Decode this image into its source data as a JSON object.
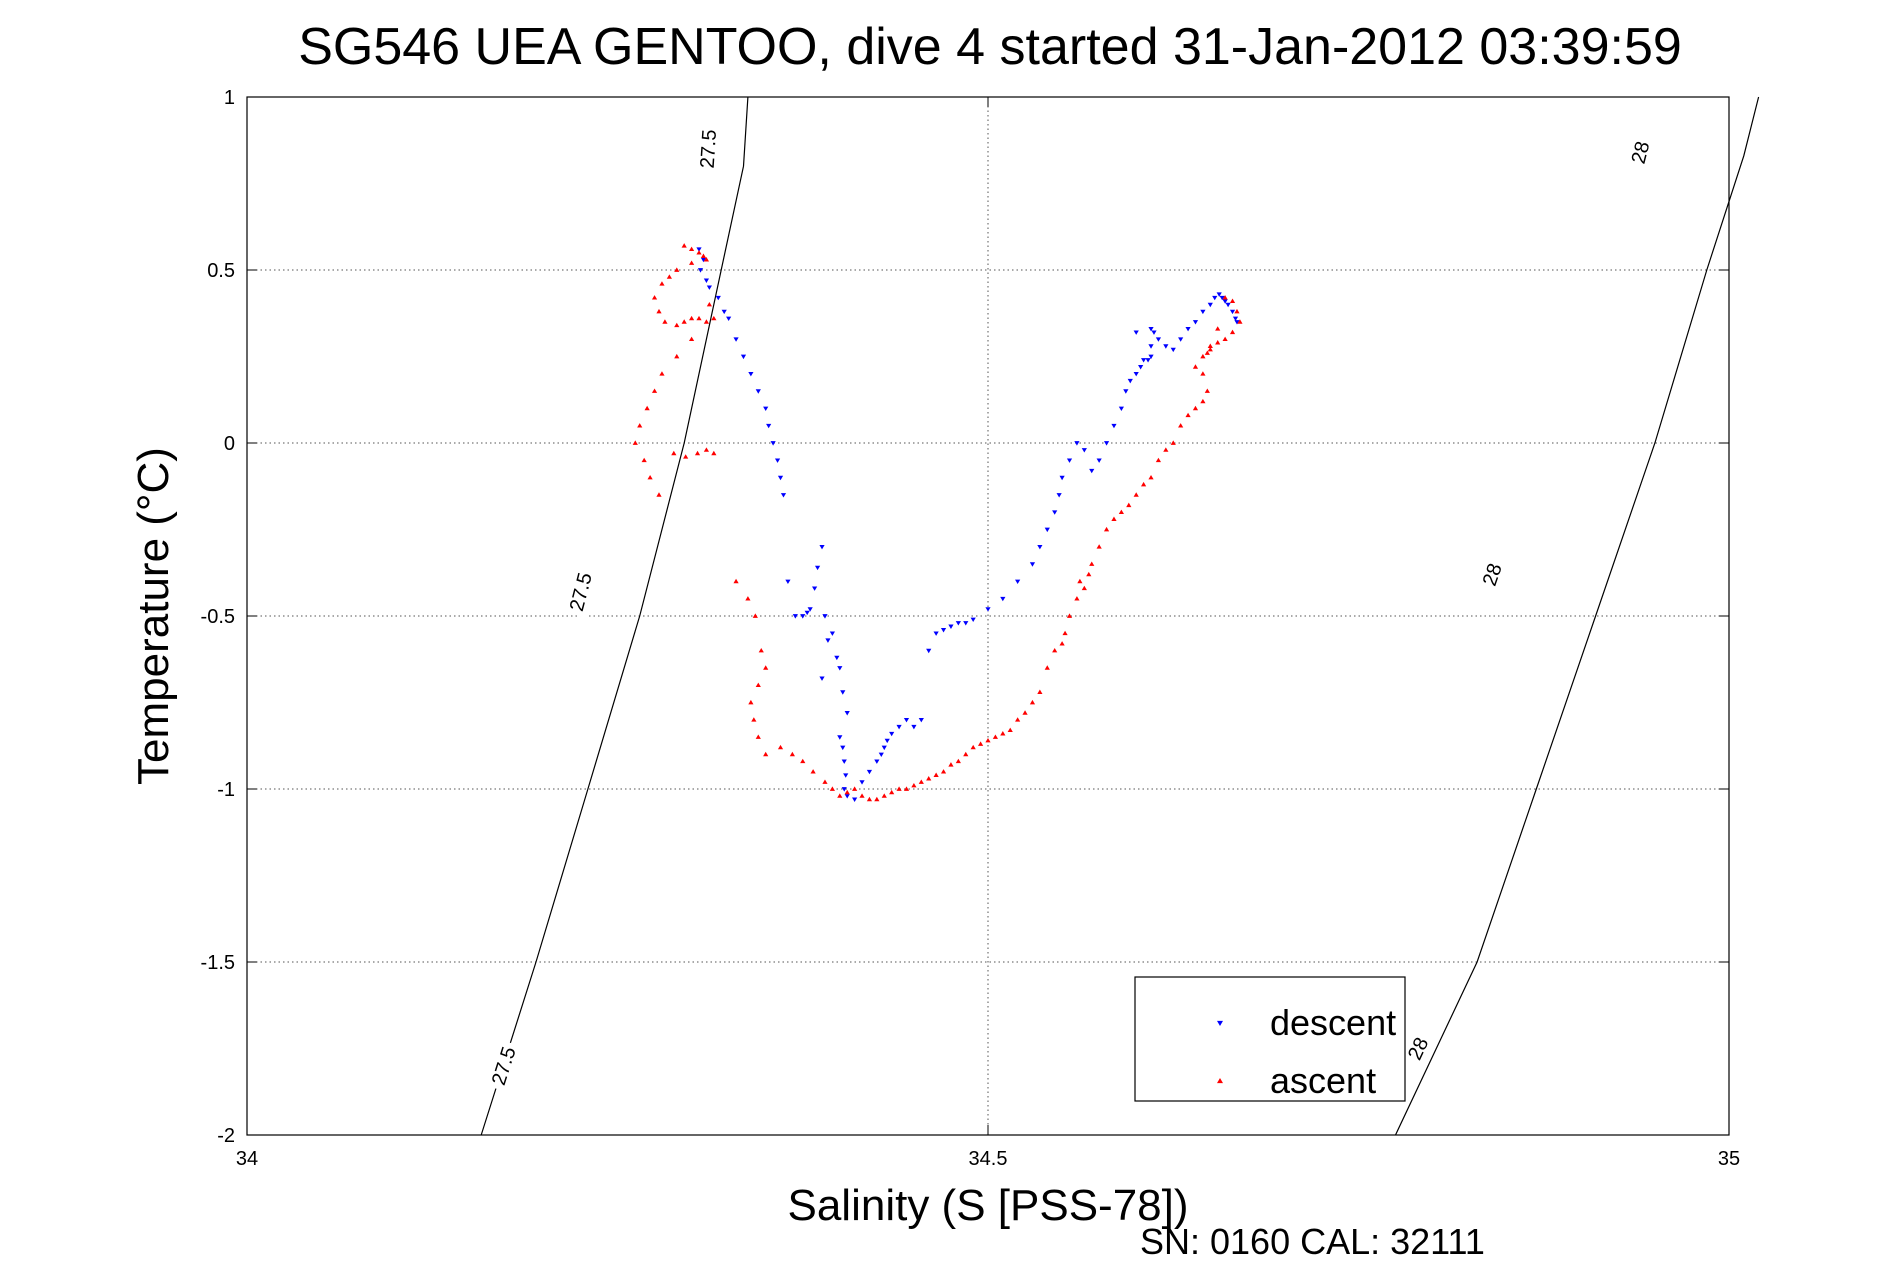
{
  "chart_data": {
    "type": "scatter",
    "title": "SG546 UEA GENTOO, dive 4 started 31-Jan-2012 03:39:59",
    "xlabel": "Salinity (S [PSS-78])",
    "ylabel": "Temperature (°C)",
    "xlim": [
      34,
      35
    ],
    "ylim": [
      -2,
      1
    ],
    "xticks": [
      34,
      34.5,
      35
    ],
    "yticks": [
      -2,
      -1.5,
      -1,
      -0.5,
      0,
      0.5,
      1
    ],
    "grid": true,
    "legend_position": "bottom-right",
    "footer": "SN: 0160  CAL: 32111",
    "contours": [
      {
        "value": "27.5",
        "points": [
          [
            34.158,
            -2
          ],
          [
            34.195,
            -1.5
          ],
          [
            34.23,
            -1
          ],
          [
            34.265,
            -0.5
          ],
          [
            34.295,
            0
          ],
          [
            34.32,
            0.5
          ],
          [
            34.335,
            0.8
          ],
          [
            34.338,
            1
          ]
        ],
        "labels": [
          [
            34.173,
            -1.8
          ],
          [
            34.225,
            -0.43
          ],
          [
            34.311,
            0.85
          ]
        ]
      },
      {
        "value": "28",
        "points": [
          [
            34.775,
            -2
          ],
          [
            34.83,
            -1.5
          ],
          [
            34.87,
            -1
          ],
          [
            34.91,
            -0.5
          ],
          [
            34.95,
            0
          ],
          [
            34.985,
            0.5
          ],
          [
            35.01,
            0.83
          ],
          [
            35.02,
            1
          ]
        ],
        "labels": [
          [
            34.79,
            -1.75
          ],
          [
            34.84,
            -0.38
          ],
          [
            34.94,
            0.84
          ]
        ]
      }
    ],
    "series": [
      {
        "name": "descent",
        "color": "#0000ff",
        "marker": "triangle-down",
        "x": [
          34.305,
          34.308,
          34.306,
          34.31,
          34.312,
          34.318,
          34.322,
          34.325,
          34.33,
          34.335,
          34.34,
          34.345,
          34.35,
          34.352,
          34.355,
          34.358,
          34.36,
          34.362,
          34.365,
          34.37,
          34.375,
          34.378,
          34.38,
          34.383,
          34.385,
          34.388,
          34.39,
          34.395,
          34.4,
          34.402,
          34.405,
          34.398,
          34.392,
          34.388,
          34.4,
          34.402,
          34.403,
          34.404,
          34.403,
          34.405,
          34.41,
          34.415,
          34.42,
          34.425,
          34.428,
          34.43,
          34.432,
          34.435,
          34.44,
          34.445,
          34.45,
          34.455,
          34.46,
          34.465,
          34.47,
          34.475,
          34.48,
          34.485,
          34.49,
          34.5,
          34.51,
          34.52,
          34.53,
          34.535,
          34.54,
          34.545,
          34.548,
          34.55,
          34.555,
          34.56,
          34.565,
          34.57,
          34.575,
          34.58,
          34.585,
          34.59,
          34.593,
          34.596,
          34.6,
          34.603,
          34.605,
          34.608,
          34.61,
          34.61,
          34.6,
          34.61,
          34.612,
          34.615,
          34.62,
          34.625,
          34.63,
          34.635,
          34.64,
          34.645,
          34.65,
          34.653,
          34.656,
          34.658,
          34.66,
          34.662,
          34.665,
          34.667,
          34.668
        ],
        "y": [
          0.56,
          0.53,
          0.5,
          0.47,
          0.45,
          0.42,
          0.38,
          0.36,
          0.3,
          0.25,
          0.2,
          0.15,
          0.1,
          0.05,
          0.0,
          -0.05,
          -0.1,
          -0.15,
          -0.4,
          -0.5,
          -0.5,
          -0.49,
          -0.48,
          -0.42,
          -0.36,
          -0.3,
          -0.5,
          -0.55,
          -0.65,
          -0.72,
          -0.78,
          -0.62,
          -0.57,
          -0.68,
          -0.85,
          -0.88,
          -0.92,
          -0.96,
          -1.0,
          -1.02,
          -1.03,
          -0.98,
          -0.95,
          -0.92,
          -0.9,
          -0.88,
          -0.86,
          -0.84,
          -0.82,
          -0.8,
          -0.82,
          -0.8,
          -0.6,
          -0.55,
          -0.54,
          -0.53,
          -0.52,
          -0.52,
          -0.51,
          -0.48,
          -0.45,
          -0.4,
          -0.35,
          -0.3,
          -0.25,
          -0.2,
          -0.15,
          -0.1,
          -0.05,
          0.0,
          -0.02,
          -0.08,
          -0.05,
          0.0,
          0.05,
          0.1,
          0.15,
          0.18,
          0.2,
          0.22,
          0.24,
          0.24,
          0.25,
          0.28,
          0.32,
          0.33,
          0.32,
          0.3,
          0.28,
          0.27,
          0.3,
          0.33,
          0.35,
          0.38,
          0.4,
          0.42,
          0.43,
          0.42,
          0.41,
          0.4,
          0.38,
          0.36,
          0.35
        ]
      },
      {
        "name": "ascent",
        "color": "#ff0000",
        "marker": "triangle-up",
        "x": [
          34.295,
          34.3,
          34.305,
          34.308,
          34.31,
          34.3,
          34.29,
          34.285,
          34.28,
          34.275,
          34.278,
          34.282,
          34.29,
          34.295,
          34.3,
          34.305,
          34.31,
          34.315,
          34.312,
          34.3,
          34.29,
          34.28,
          34.275,
          34.27,
          34.265,
          34.262,
          34.268,
          34.272,
          34.278,
          34.288,
          34.296,
          34.304,
          34.31,
          34.315,
          34.33,
          34.338,
          34.343,
          34.347,
          34.35,
          34.345,
          34.34,
          34.342,
          34.345,
          34.35,
          34.36,
          34.368,
          34.375,
          34.382,
          34.39,
          34.395,
          34.4,
          34.405,
          34.41,
          34.415,
          34.42,
          34.425,
          34.43,
          34.435,
          34.44,
          34.445,
          34.45,
          34.455,
          34.46,
          34.465,
          34.47,
          34.475,
          34.48,
          34.485,
          34.49,
          34.495,
          34.5,
          34.505,
          34.51,
          34.515,
          34.52,
          34.525,
          34.53,
          34.535,
          34.54,
          34.545,
          34.55,
          34.552,
          34.555,
          34.56,
          34.562,
          34.565,
          34.568,
          34.57,
          34.575,
          34.58,
          34.585,
          34.59,
          34.595,
          34.6,
          34.605,
          34.61,
          34.615,
          34.62,
          34.625,
          34.63,
          34.635,
          34.64,
          34.645,
          34.648,
          34.645,
          34.64,
          34.645,
          34.65,
          34.655,
          34.66,
          34.665,
          34.67,
          34.668,
          34.665,
          34.66,
          34.655,
          34.65,
          34.648
        ],
        "y": [
          0.57,
          0.56,
          0.55,
          0.54,
          0.53,
          0.52,
          0.5,
          0.48,
          0.46,
          0.42,
          0.38,
          0.35,
          0.34,
          0.35,
          0.36,
          0.36,
          0.35,
          0.36,
          0.4,
          0.3,
          0.25,
          0.2,
          0.15,
          0.1,
          0.05,
          0.0,
          -0.05,
          -0.1,
          -0.15,
          -0.03,
          -0.04,
          -0.03,
          -0.02,
          -0.03,
          -0.4,
          -0.45,
          -0.5,
          -0.6,
          -0.65,
          -0.7,
          -0.75,
          -0.8,
          -0.85,
          -0.9,
          -0.88,
          -0.9,
          -0.92,
          -0.95,
          -0.98,
          -1.0,
          -1.02,
          -1.01,
          -1.0,
          -1.02,
          -1.03,
          -1.03,
          -1.02,
          -1.01,
          -1.0,
          -1.0,
          -0.99,
          -0.98,
          -0.97,
          -0.96,
          -0.95,
          -0.93,
          -0.92,
          -0.9,
          -0.88,
          -0.87,
          -0.86,
          -0.85,
          -0.84,
          -0.83,
          -0.8,
          -0.78,
          -0.75,
          -0.72,
          -0.65,
          -0.6,
          -0.58,
          -0.55,
          -0.5,
          -0.45,
          -0.4,
          -0.42,
          -0.38,
          -0.35,
          -0.3,
          -0.25,
          -0.22,
          -0.2,
          -0.18,
          -0.15,
          -0.12,
          -0.1,
          -0.05,
          -0.02,
          0.0,
          0.05,
          0.08,
          0.1,
          0.12,
          0.15,
          0.2,
          0.22,
          0.25,
          0.27,
          0.29,
          0.3,
          0.32,
          0.35,
          0.38,
          0.41,
          0.42,
          0.33,
          0.28,
          0.26
        ]
      }
    ]
  }
}
